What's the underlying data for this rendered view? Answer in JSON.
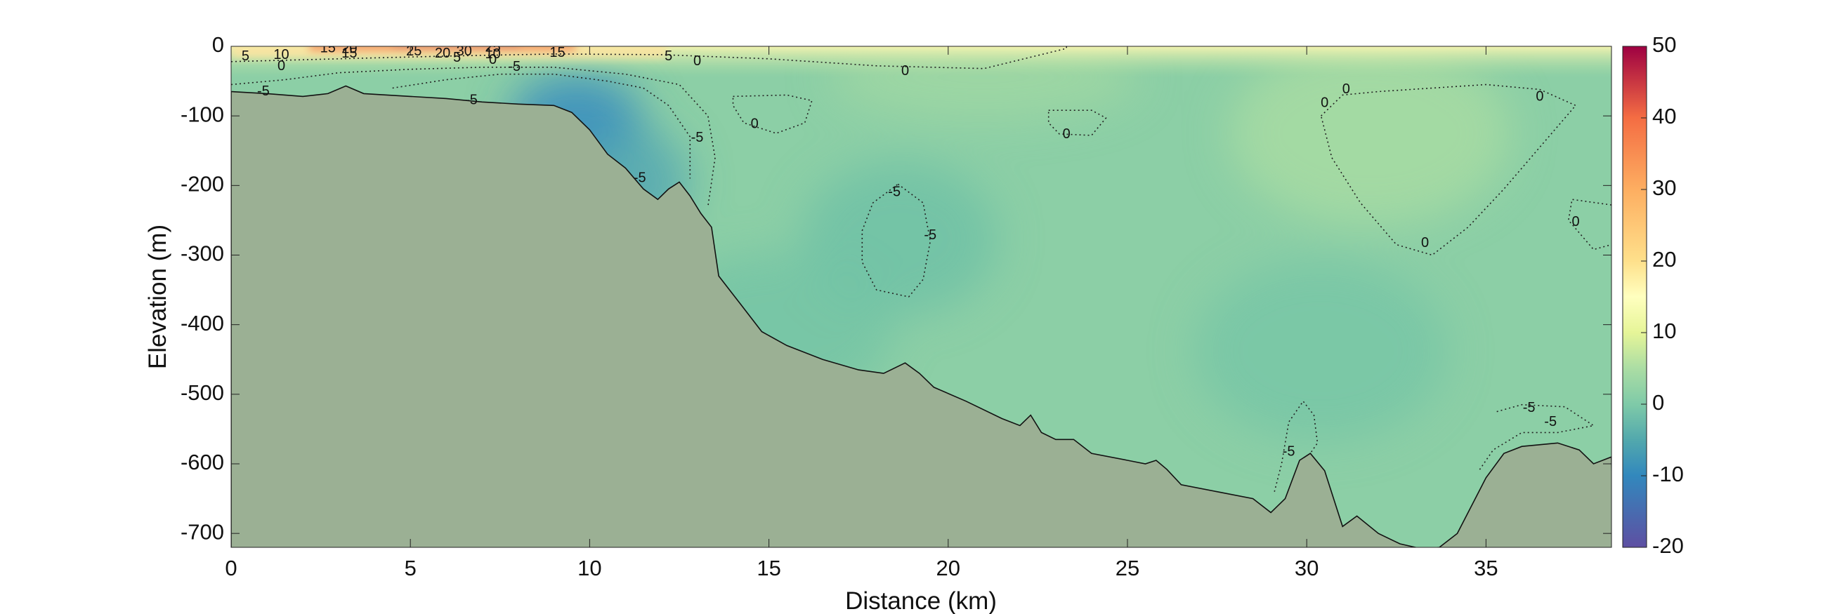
{
  "chart_data": {
    "type": "heatmap",
    "xlabel": "Distance (km)",
    "ylabel": "Elevation (m)",
    "xlim": [
      0,
      38.5
    ],
    "ylim": [
      -720,
      0
    ],
    "x_ticks": [
      0,
      5,
      10,
      15,
      20,
      25,
      30,
      35
    ],
    "x_tick_labels": [
      "0",
      "5",
      "10",
      "15",
      "20",
      "25",
      "30",
      "35"
    ],
    "y_ticks": [
      0,
      -100,
      -200,
      -300,
      -400,
      -500,
      -600,
      -700
    ],
    "y_tick_labels": [
      "0",
      "-100",
      "-200",
      "-300",
      "-400",
      "-500",
      "-600",
      "-700"
    ],
    "colorbar": {
      "min": -20,
      "max": 50,
      "ticks": [
        50,
        40,
        30,
        20,
        10,
        0,
        -10,
        -20
      ],
      "tick_labels": [
        "50",
        "40",
        "30",
        "20",
        "10",
        "0",
        "-10",
        "-20"
      ]
    },
    "colormap_stops": [
      {
        "value": -20,
        "color": "#5e4fa2"
      },
      {
        "value": -10,
        "color": "#3288bd"
      },
      {
        "value": -5,
        "color": "#52a8ad"
      },
      {
        "value": 0,
        "color": "#7fcaa8"
      },
      {
        "value": 5,
        "color": "#abdda4"
      },
      {
        "value": 10,
        "color": "#e6f598"
      },
      {
        "value": 15,
        "color": "#ffffbf"
      },
      {
        "value": 20,
        "color": "#fee08b"
      },
      {
        "value": 30,
        "color": "#fdae61"
      },
      {
        "value": 40,
        "color": "#f46d43"
      },
      {
        "value": 50,
        "color": "#9e0142"
      }
    ],
    "seabed_color": "#9bb094",
    "seabed": [
      [
        0,
        -65
      ],
      [
        1,
        -68
      ],
      [
        2,
        -72
      ],
      [
        2.7,
        -68
      ],
      [
        3.2,
        -57
      ],
      [
        3.7,
        -68
      ],
      [
        5,
        -72
      ],
      [
        6,
        -75
      ],
      [
        7,
        -80
      ],
      [
        8,
        -83
      ],
      [
        9,
        -85
      ],
      [
        9.5,
        -95
      ],
      [
        10,
        -120
      ],
      [
        10.5,
        -155
      ],
      [
        11,
        -175
      ],
      [
        11.5,
        -205
      ],
      [
        11.9,
        -220
      ],
      [
        12.2,
        -205
      ],
      [
        12.5,
        -195
      ],
      [
        12.8,
        -215
      ],
      [
        13.1,
        -240
      ],
      [
        13.4,
        -260
      ],
      [
        13.6,
        -330
      ],
      [
        14.2,
        -370
      ],
      [
        14.8,
        -410
      ],
      [
        15.5,
        -430
      ],
      [
        16.5,
        -450
      ],
      [
        17.5,
        -465
      ],
      [
        18.2,
        -470
      ],
      [
        18.8,
        -455
      ],
      [
        19.2,
        -470
      ],
      [
        19.6,
        -490
      ],
      [
        20.5,
        -510
      ],
      [
        21.5,
        -535
      ],
      [
        22,
        -545
      ],
      [
        22.3,
        -530
      ],
      [
        22.6,
        -555
      ],
      [
        23,
        -565
      ],
      [
        23.5,
        -565
      ],
      [
        24,
        -585
      ],
      [
        25,
        -595
      ],
      [
        25.5,
        -600
      ],
      [
        25.8,
        -595
      ],
      [
        26.1,
        -608
      ],
      [
        26.5,
        -630
      ],
      [
        27.5,
        -640
      ],
      [
        28.5,
        -650
      ],
      [
        29,
        -670
      ],
      [
        29.4,
        -650
      ],
      [
        29.8,
        -595
      ],
      [
        30.1,
        -585
      ],
      [
        30.5,
        -610
      ],
      [
        31,
        -690
      ],
      [
        31.4,
        -675
      ],
      [
        32,
        -700
      ],
      [
        32.6,
        -715
      ],
      [
        33.2,
        -722
      ],
      [
        33.7,
        -720
      ],
      [
        34.2,
        -700
      ],
      [
        35,
        -620
      ],
      [
        35.5,
        -585
      ],
      [
        36,
        -575
      ],
      [
        37,
        -570
      ],
      [
        37.6,
        -580
      ],
      [
        38,
        -600
      ],
      [
        38.5,
        -590
      ]
    ],
    "contour_labels": [
      {
        "x": 0.4,
        "y": -15,
        "text": "5"
      },
      {
        "x": 1.4,
        "y": -13,
        "text": "10"
      },
      {
        "x": 1.4,
        "y": -29,
        "text": "0"
      },
      {
        "x": 2.7,
        "y": -3,
        "text": "15"
      },
      {
        "x": 3.3,
        "y": -4,
        "text": "20"
      },
      {
        "x": 3.3,
        "y": -11,
        "text": "15"
      },
      {
        "x": 5.1,
        "y": -8,
        "text": "25"
      },
      {
        "x": 5.9,
        "y": -11,
        "text": "20"
      },
      {
        "x": 6.5,
        "y": -8,
        "text": "30"
      },
      {
        "x": 6.3,
        "y": -17,
        "text": "5"
      },
      {
        "x": 7.3,
        "y": -2,
        "text": "25"
      },
      {
        "x": 7.3,
        "y": -12,
        "text": "10"
      },
      {
        "x": 7.3,
        "y": -20,
        "text": "0"
      },
      {
        "x": 7.9,
        "y": -30,
        "text": "-5"
      },
      {
        "x": 0.9,
        "y": -65,
        "text": "-5"
      },
      {
        "x": 6.7,
        "y": -78,
        "text": "-5"
      },
      {
        "x": 9.1,
        "y": -10,
        "text": "15"
      },
      {
        "x": 12.2,
        "y": -15,
        "text": "5"
      },
      {
        "x": 13,
        "y": -22,
        "text": "0"
      },
      {
        "x": 14.6,
        "y": -112,
        "text": "0"
      },
      {
        "x": 13,
        "y": -132,
        "text": "-5"
      },
      {
        "x": 11.4,
        "y": -190,
        "text": "-5"
      },
      {
        "x": 18.5,
        "y": -210,
        "text": "-5"
      },
      {
        "x": 19.5,
        "y": -272,
        "text": "-5"
      },
      {
        "x": 18.8,
        "y": -36,
        "text": "0"
      },
      {
        "x": 23.3,
        "y": -127,
        "text": "0"
      },
      {
        "x": 30.5,
        "y": -82,
        "text": "0"
      },
      {
        "x": 31.1,
        "y": -62,
        "text": "0"
      },
      {
        "x": 36.5,
        "y": -73,
        "text": "0"
      },
      {
        "x": 37.5,
        "y": -253,
        "text": "0"
      },
      {
        "x": 33.3,
        "y": -283,
        "text": "0"
      },
      {
        "x": 36.2,
        "y": -520,
        "text": "-5"
      },
      {
        "x": 36.8,
        "y": -540,
        "text": "-5"
      },
      {
        "x": 29.5,
        "y": -583,
        "text": "-5"
      }
    ],
    "contour_lines": [
      [
        [
          0,
          -55
        ],
        [
          1.5,
          -48
        ],
        [
          3,
          -38
        ],
        [
          5,
          -33
        ],
        [
          7,
          -30
        ],
        [
          9,
          -30
        ],
        [
          11,
          -40
        ],
        [
          12.5,
          -55
        ],
        [
          13.3,
          -100
        ],
        [
          13.5,
          -160
        ],
        [
          13.3,
          -230
        ]
      ],
      [
        [
          4.5,
          -60
        ],
        [
          6,
          -48
        ],
        [
          7.5,
          -40
        ],
        [
          9,
          -40
        ],
        [
          10.5,
          -50
        ],
        [
          11.5,
          -60
        ],
        [
          12.2,
          -85
        ],
        [
          12.8,
          -130
        ],
        [
          12.8,
          -190
        ]
      ],
      [
        [
          0,
          -22
        ],
        [
          3,
          -18
        ],
        [
          6,
          -14
        ],
        [
          9,
          -11
        ],
        [
          12,
          -12
        ],
        [
          15,
          -18
        ],
        [
          18,
          -28
        ],
        [
          21,
          -32
        ],
        [
          23.3,
          -3
        ],
        [
          23.3,
          0
        ]
      ],
      [
        [
          14,
          -72
        ],
        [
          15.5,
          -70
        ],
        [
          16.2,
          -78
        ],
        [
          16,
          -110
        ],
        [
          15.2,
          -125
        ],
        [
          14.3,
          -110
        ],
        [
          14,
          -85
        ],
        [
          14,
          -72
        ]
      ],
      [
        [
          22.8,
          -92
        ],
        [
          24,
          -92
        ],
        [
          24.4,
          -103
        ],
        [
          24,
          -128
        ],
        [
          23.1,
          -126
        ],
        [
          22.8,
          -110
        ],
        [
          22.8,
          -92
        ]
      ],
      [
        [
          18.6,
          -198
        ],
        [
          19.3,
          -225
        ],
        [
          19.5,
          -280
        ],
        [
          19.3,
          -335
        ],
        [
          18.9,
          -360
        ],
        [
          18,
          -350
        ],
        [
          17.6,
          -310
        ],
        [
          17.6,
          -265
        ],
        [
          17.9,
          -225
        ],
        [
          18.6,
          -198
        ]
      ],
      [
        [
          30.4,
          -100
        ],
        [
          31,
          -70
        ],
        [
          32,
          -65
        ],
        [
          33.5,
          -60
        ],
        [
          35,
          -55
        ],
        [
          36.5,
          -62
        ],
        [
          37.5,
          -85
        ],
        [
          36.5,
          -145
        ],
        [
          35.5,
          -205
        ],
        [
          34.5,
          -260
        ],
        [
          33.5,
          -300
        ],
        [
          32.5,
          -285
        ],
        [
          31.5,
          -225
        ],
        [
          30.7,
          -160
        ],
        [
          30.4,
          -100
        ]
      ],
      [
        [
          38.5,
          -228
        ],
        [
          37.4,
          -220
        ],
        [
          37.3,
          -250
        ],
        [
          38,
          -292
        ],
        [
          38.5,
          -285
        ]
      ],
      [
        [
          35.3,
          -525
        ],
        [
          36,
          -515
        ],
        [
          37.2,
          -518
        ],
        [
          38,
          -545
        ],
        [
          37,
          -555
        ],
        [
          36,
          -555
        ],
        [
          35.2,
          -580
        ],
        [
          34.8,
          -610
        ]
      ],
      [
        [
          29.1,
          -640
        ],
        [
          29.3,
          -600
        ],
        [
          29.5,
          -540
        ],
        [
          29.9,
          -510
        ],
        [
          30.2,
          -530
        ],
        [
          30.3,
          -570
        ],
        [
          30.1,
          -585
        ]
      ]
    ]
  }
}
